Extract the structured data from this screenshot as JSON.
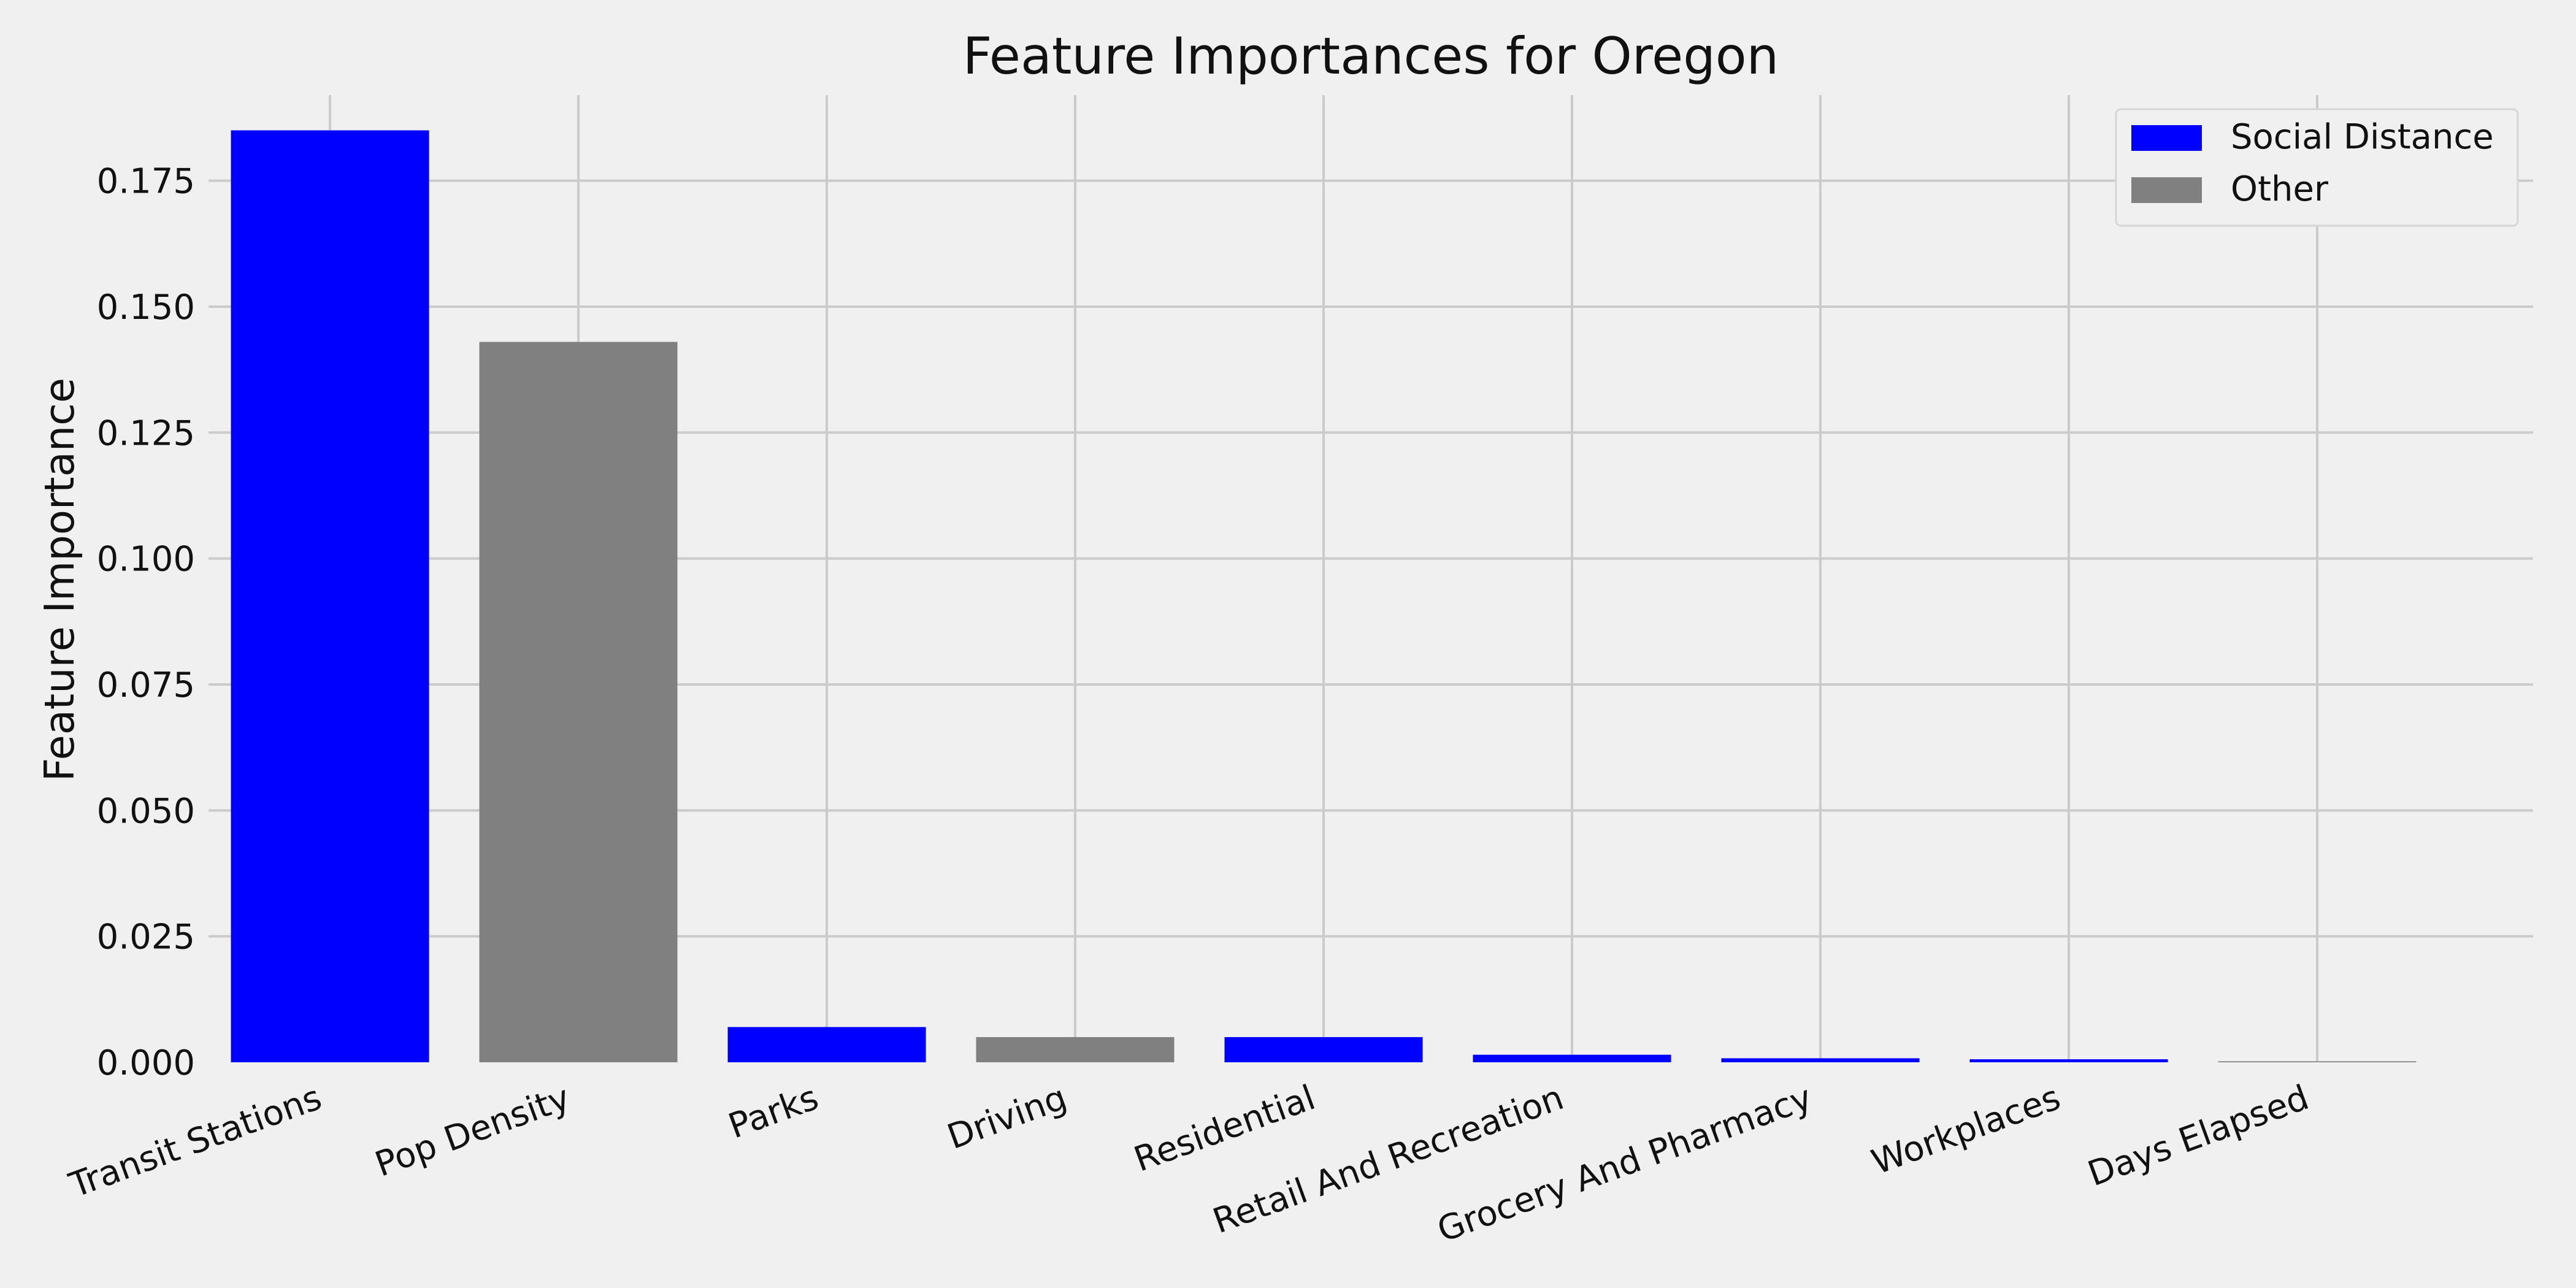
{
  "colors": {
    "background": "#f0f0f0",
    "grid": "#cbcbcb",
    "social_distance": "#0000ff",
    "other": "#808080"
  },
  "chart_data": {
    "type": "bar",
    "title": "Feature Importances for Oregon",
    "xlabel": "",
    "ylabel": "Feature Importance",
    "categories": [
      "Transit Stations",
      "Pop Density",
      "Parks",
      "Driving",
      "Residential",
      "Retail And Recreation",
      "Grocery And Pharmacy",
      "Workplaces",
      "Days Elapsed"
    ],
    "values": [
      0.185,
      0.143,
      0.007,
      0.005,
      0.005,
      0.0015,
      0.0008,
      0.0006,
      0.0002
    ],
    "groups": [
      "Social Distance",
      "Other",
      "Social Distance",
      "Other",
      "Social Distance",
      "Social Distance",
      "Social Distance",
      "Social Distance",
      "Other"
    ],
    "ylim": [
      0,
      0.192
    ],
    "yticks": [
      "0.000",
      "0.025",
      "0.050",
      "0.075",
      "0.100",
      "0.125",
      "0.150",
      "0.175"
    ],
    "ytick_values": [
      0,
      0.025,
      0.05,
      0.075,
      0.1,
      0.125,
      0.15,
      0.175
    ],
    "grid": true,
    "legend": {
      "position": "top-right",
      "entries": [
        {
          "label": "Social Distance",
          "color": "#0000ff"
        },
        {
          "label": "Other",
          "color": "#808080"
        }
      ]
    }
  }
}
